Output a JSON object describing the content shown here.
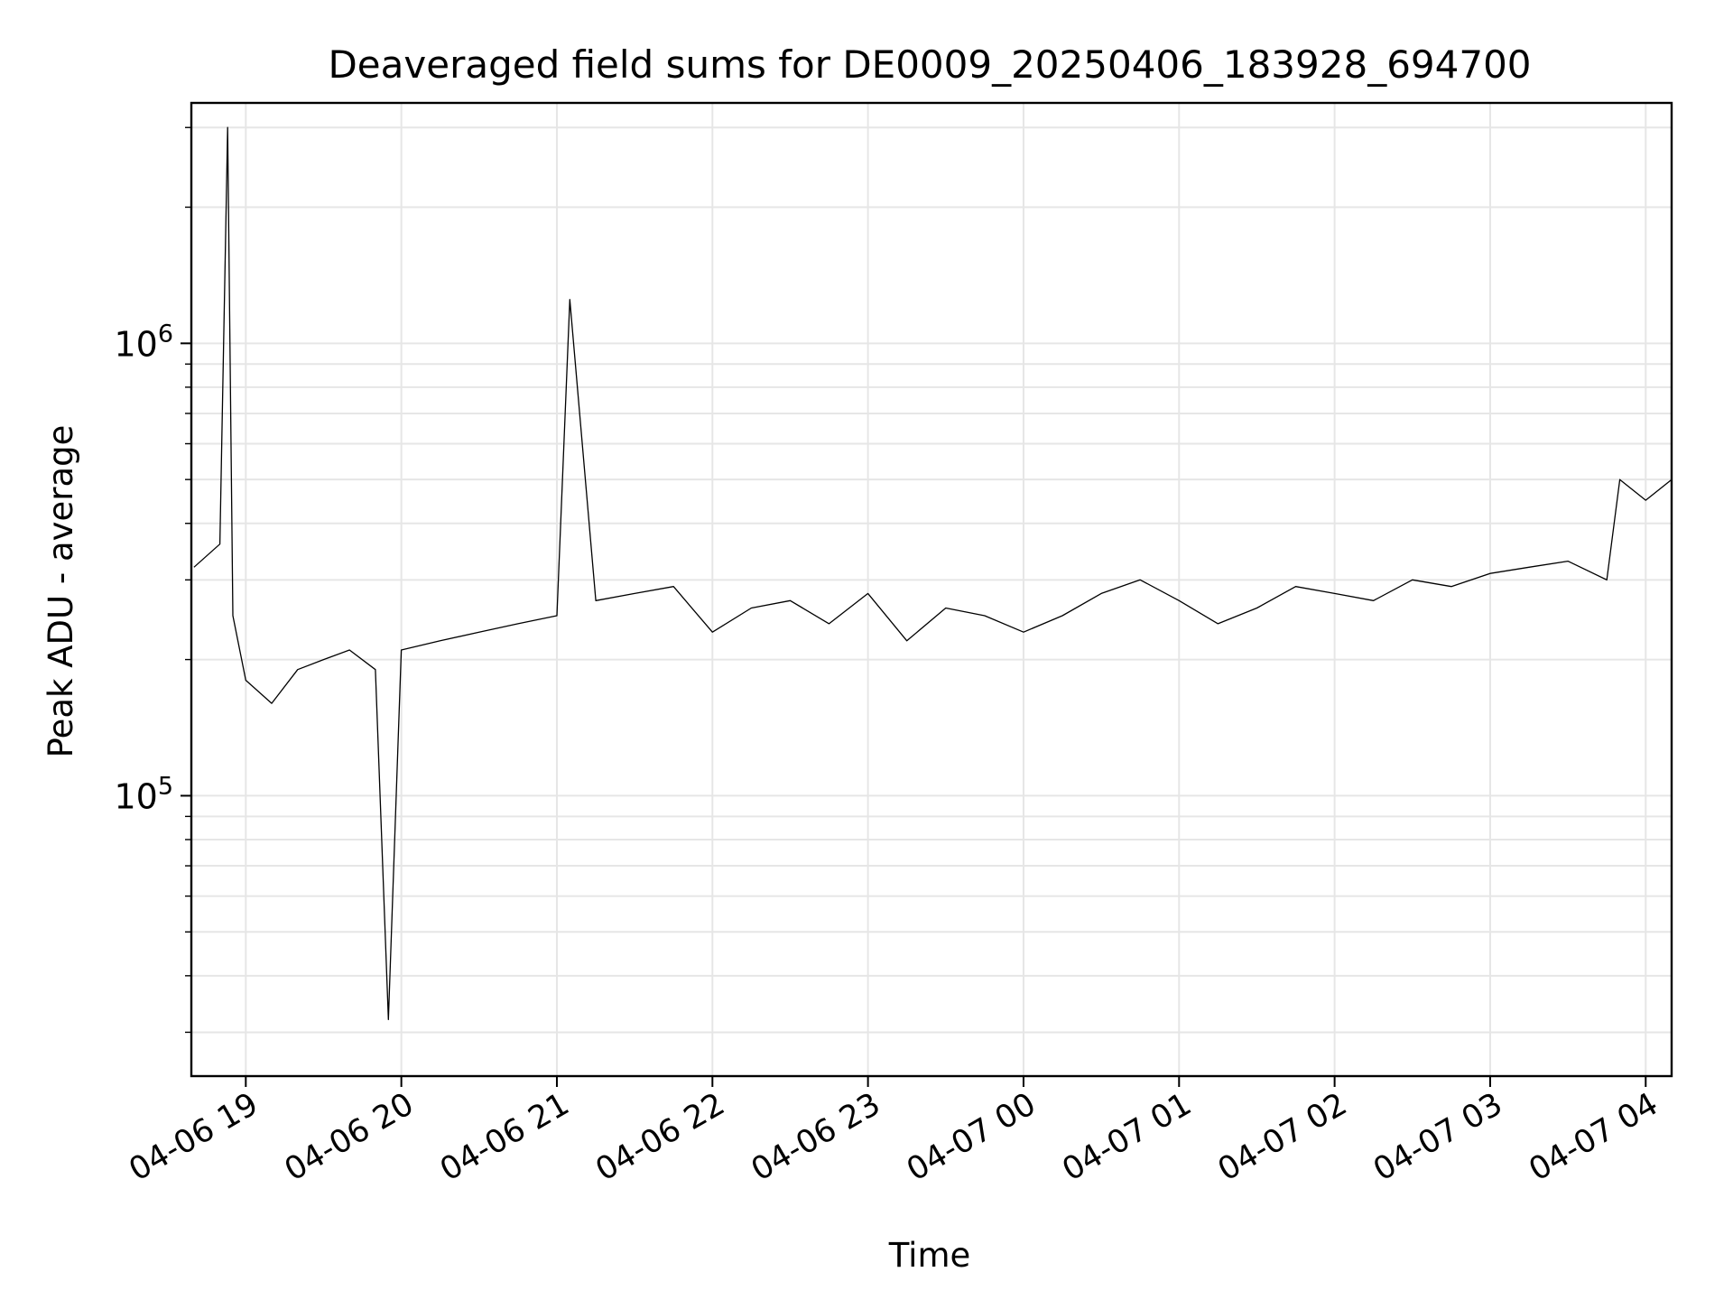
{
  "chart_data": {
    "type": "line",
    "title": "Deaveraged field sums for DE0009_20250406_183928_694700",
    "xlabel": "Time",
    "ylabel": "Peak ADU - average",
    "x_scale": "time",
    "y_scale": "log",
    "xlim": [
      "2025-04-06 18:39",
      "2025-04-07 04:10"
    ],
    "ylim": [
      24000,
      3400000
    ],
    "grid": true,
    "line_color": "#000000",
    "x_tick_labels": [
      "04-06 19",
      "04-06 20",
      "04-06 21",
      "04-06 22",
      "04-06 23",
      "04-07 00",
      "04-07 01",
      "04-07 02",
      "04-07 03",
      "04-07 04"
    ],
    "x_ticks": [
      "2025-04-06 19:00",
      "2025-04-06 20:00",
      "2025-04-06 21:00",
      "2025-04-06 22:00",
      "2025-04-06 23:00",
      "2025-04-07 00:00",
      "2025-04-07 01:00",
      "2025-04-07 02:00",
      "2025-04-07 03:00",
      "2025-04-07 04:00"
    ],
    "y_ticks": [
      {
        "value": 100000,
        "base": "10",
        "exp": "5"
      },
      {
        "value": 1000000,
        "base": "10",
        "exp": "6"
      }
    ],
    "series": [
      {
        "x": [
          "2025-04-06 18:40",
          "2025-04-06 18:50",
          "2025-04-06 18:53",
          "2025-04-06 18:55",
          "2025-04-06 19:00",
          "2025-04-06 19:10",
          "2025-04-06 19:20",
          "2025-04-06 19:30",
          "2025-04-06 19:40",
          "2025-04-06 19:50",
          "2025-04-06 19:55",
          "2025-04-06 20:00",
          "2025-04-06 20:15",
          "2025-04-06 20:30",
          "2025-04-06 20:45",
          "2025-04-06 21:00",
          "2025-04-06 21:05",
          "2025-04-06 21:15",
          "2025-04-06 21:30",
          "2025-04-06 21:45",
          "2025-04-06 22:00",
          "2025-04-06 22:15",
          "2025-04-06 22:30",
          "2025-04-06 22:45",
          "2025-04-06 23:00",
          "2025-04-06 23:15",
          "2025-04-06 23:30",
          "2025-04-06 23:45",
          "2025-04-07 00:00",
          "2025-04-07 00:15",
          "2025-04-07 00:30",
          "2025-04-07 00:45",
          "2025-04-07 01:00",
          "2025-04-07 01:15",
          "2025-04-07 01:30",
          "2025-04-07 01:45",
          "2025-04-07 02:00",
          "2025-04-07 02:15",
          "2025-04-07 02:30",
          "2025-04-07 02:45",
          "2025-04-07 03:00",
          "2025-04-07 03:15",
          "2025-04-07 03:30",
          "2025-04-07 03:45",
          "2025-04-07 03:50",
          "2025-04-07 04:00",
          "2025-04-07 04:10"
        ],
        "y": [
          320000,
          360000,
          3000000,
          250000,
          180000,
          160000,
          190000,
          200000,
          210000,
          190000,
          32000,
          210000,
          220000,
          230000,
          240000,
          250000,
          1250000,
          270000,
          280000,
          290000,
          230000,
          260000,
          270000,
          240000,
          280000,
          220000,
          260000,
          250000,
          230000,
          250000,
          280000,
          300000,
          270000,
          240000,
          260000,
          290000,
          280000,
          270000,
          300000,
          290000,
          310000,
          320000,
          330000,
          300000,
          500000,
          450000,
          500000
        ]
      }
    ]
  }
}
